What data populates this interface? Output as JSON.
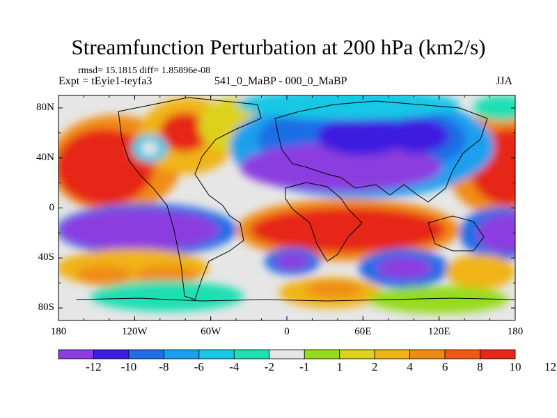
{
  "title": "Streamfunction Perturbation at 200 hPa (km2/s)",
  "stats": "rmsd= 15.1815 diff= 1.85896e-08",
  "left_label": "Expt = tEyie1-teyfa3",
  "center_label": "541_0_MaBP - 000_0_MaBP",
  "right_label": "JJA",
  "map": {
    "projection": "cylindrical equidistant",
    "lon_range": [
      -180,
      180
    ],
    "lat_range": [
      -90,
      90
    ],
    "lon_ticks": [
      {
        "value": -180,
        "label": "180"
      },
      {
        "value": -120,
        "label": "120W"
      },
      {
        "value": -60,
        "label": "60W"
      },
      {
        "value": 0,
        "label": "0"
      },
      {
        "value": 60,
        "label": "60E"
      },
      {
        "value": 120,
        "label": "120E"
      },
      {
        "value": 180,
        "label": "180"
      }
    ],
    "lat_ticks": [
      {
        "value": 80,
        "label": "80N"
      },
      {
        "value": 40,
        "label": "40N"
      },
      {
        "value": 0,
        "label": "0"
      },
      {
        "value": -40,
        "label": "40S"
      },
      {
        "value": -80,
        "label": "80S"
      }
    ]
  },
  "colorbar": {
    "colors": [
      "#8c3ce0",
      "#3c1ee0",
      "#1e6ee6",
      "#1aa0ee",
      "#18c8e6",
      "#1ee0b4",
      "#e6e6e6",
      "#96dc1e",
      "#dcd21e",
      "#f0b418",
      "#f08c14",
      "#f05a14",
      "#e62814"
    ],
    "labels": [
      "-12",
      "-10",
      "-8",
      "-6",
      "-4",
      "-2",
      "-1",
      "1",
      "2",
      "4",
      "6",
      "8",
      "10",
      "12"
    ]
  }
}
